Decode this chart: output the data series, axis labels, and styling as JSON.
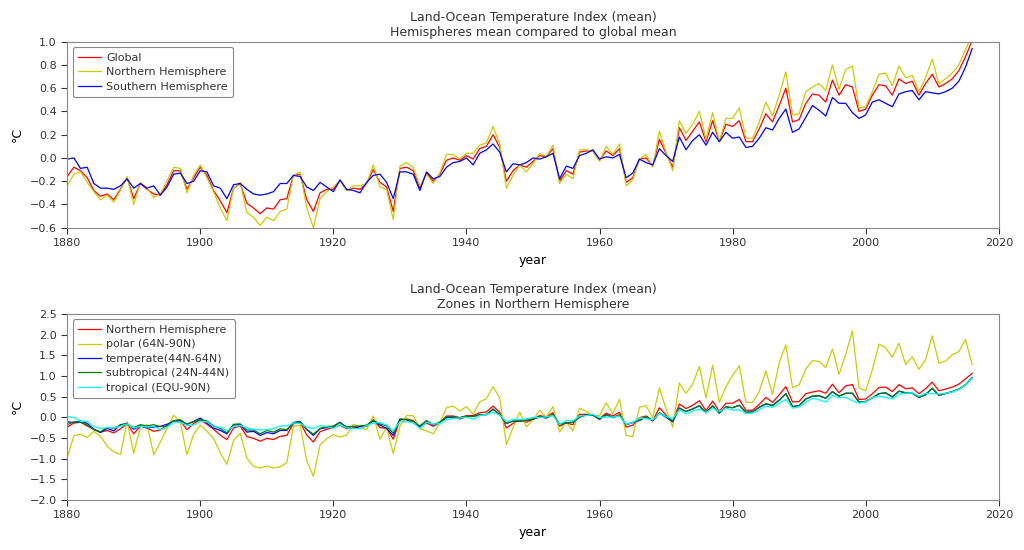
{
  "title1": "Land-Ocean Temperature Index (mean)",
  "subtitle1": "Hemispheres mean compared to global mean",
  "title2": "Land-Ocean Temperature Index (mean)",
  "subtitle2": "Zones in Northern Hemisphere",
  "xlabel": "year",
  "ylabel": "°C",
  "years": [
    1880,
    1881,
    1882,
    1883,
    1884,
    1885,
    1886,
    1887,
    1888,
    1889,
    1890,
    1891,
    1892,
    1893,
    1894,
    1895,
    1896,
    1897,
    1898,
    1899,
    1900,
    1901,
    1902,
    1903,
    1904,
    1905,
    1906,
    1907,
    1908,
    1909,
    1910,
    1911,
    1912,
    1913,
    1914,
    1915,
    1916,
    1917,
    1918,
    1919,
    1920,
    1921,
    1922,
    1923,
    1924,
    1925,
    1926,
    1927,
    1928,
    1929,
    1930,
    1931,
    1932,
    1933,
    1934,
    1935,
    1936,
    1937,
    1938,
    1939,
    1940,
    1941,
    1942,
    1943,
    1944,
    1945,
    1946,
    1947,
    1948,
    1949,
    1950,
    1951,
    1952,
    1953,
    1954,
    1955,
    1956,
    1957,
    1958,
    1959,
    1960,
    1961,
    1962,
    1963,
    1964,
    1965,
    1966,
    1967,
    1968,
    1969,
    1970,
    1971,
    1972,
    1973,
    1974,
    1975,
    1976,
    1977,
    1978,
    1979,
    1980,
    1981,
    1982,
    1983,
    1984,
    1985,
    1986,
    1987,
    1988,
    1989,
    1990,
    1991,
    1992,
    1993,
    1994,
    1995,
    1996,
    1997,
    1998,
    1999,
    2000,
    2001,
    2002,
    2003,
    2004,
    2005,
    2006,
    2007,
    2008,
    2009,
    2010,
    2011,
    2012,
    2013,
    2014,
    2015,
    2016
  ],
  "global": [
    -0.16,
    -0.08,
    -0.11,
    -0.17,
    -0.28,
    -0.33,
    -0.31,
    -0.36,
    -0.27,
    -0.17,
    -0.35,
    -0.22,
    -0.27,
    -0.31,
    -0.32,
    -0.23,
    -0.11,
    -0.11,
    -0.27,
    -0.17,
    -0.08,
    -0.15,
    -0.28,
    -0.37,
    -0.47,
    -0.26,
    -0.22,
    -0.39,
    -0.43,
    -0.48,
    -0.43,
    -0.44,
    -0.36,
    -0.35,
    -0.15,
    -0.14,
    -0.36,
    -0.46,
    -0.3,
    -0.27,
    -0.27,
    -0.19,
    -0.28,
    -0.26,
    -0.27,
    -0.22,
    -0.1,
    -0.21,
    -0.25,
    -0.46,
    -0.09,
    -0.08,
    -0.11,
    -0.26,
    -0.13,
    -0.2,
    -0.14,
    -0.02,
    -0.0,
    -0.02,
    0.02,
    -0.01,
    0.08,
    0.1,
    0.2,
    0.09,
    -0.2,
    -0.11,
    -0.06,
    -0.08,
    -0.03,
    0.02,
    0.01,
    0.08,
    -0.2,
    -0.11,
    -0.14,
    0.05,
    0.06,
    0.06,
    -0.02,
    0.06,
    0.02,
    0.08,
    -0.21,
    -0.17,
    -0.01,
    0.0,
    -0.07,
    0.16,
    0.04,
    -0.08,
    0.26,
    0.15,
    0.23,
    0.31,
    0.14,
    0.32,
    0.14,
    0.29,
    0.27,
    0.32,
    0.14,
    0.14,
    0.25,
    0.38,
    0.31,
    0.45,
    0.6,
    0.31,
    0.33,
    0.47,
    0.55,
    0.54,
    0.48,
    0.67,
    0.54,
    0.63,
    0.61,
    0.4,
    0.42,
    0.54,
    0.63,
    0.62,
    0.54,
    0.68,
    0.64,
    0.66,
    0.54,
    0.64,
    0.72,
    0.61,
    0.64,
    0.68,
    0.75,
    0.87,
    1.01
  ],
  "north": [
    -0.24,
    -0.14,
    -0.12,
    -0.21,
    -0.29,
    -0.36,
    -0.32,
    -0.38,
    -0.28,
    -0.16,
    -0.4,
    -0.21,
    -0.26,
    -0.34,
    -0.31,
    -0.2,
    -0.08,
    -0.09,
    -0.3,
    -0.15,
    -0.06,
    -0.17,
    -0.29,
    -0.43,
    -0.54,
    -0.26,
    -0.21,
    -0.47,
    -0.51,
    -0.58,
    -0.51,
    -0.54,
    -0.46,
    -0.44,
    -0.15,
    -0.12,
    -0.43,
    -0.6,
    -0.35,
    -0.29,
    -0.25,
    -0.19,
    -0.28,
    -0.24,
    -0.24,
    -0.22,
    -0.06,
    -0.25,
    -0.27,
    -0.53,
    -0.07,
    -0.04,
    -0.08,
    -0.24,
    -0.14,
    -0.22,
    -0.13,
    0.03,
    0.03,
    -0.01,
    0.04,
    0.04,
    0.11,
    0.13,
    0.27,
    0.12,
    -0.26,
    -0.15,
    -0.06,
    -0.12,
    -0.05,
    0.04,
    0.01,
    0.11,
    -0.22,
    -0.14,
    -0.18,
    0.07,
    0.07,
    0.06,
    -0.03,
    0.1,
    0.03,
    0.12,
    -0.24,
    -0.19,
    -0.01,
    0.03,
    -0.08,
    0.23,
    0.05,
    -0.11,
    0.32,
    0.21,
    0.29,
    0.4,
    0.16,
    0.39,
    0.14,
    0.34,
    0.34,
    0.43,
    0.17,
    0.17,
    0.31,
    0.48,
    0.36,
    0.54,
    0.74,
    0.37,
    0.38,
    0.57,
    0.61,
    0.64,
    0.58,
    0.8,
    0.59,
    0.76,
    0.79,
    0.43,
    0.44,
    0.57,
    0.72,
    0.73,
    0.62,
    0.79,
    0.69,
    0.71,
    0.57,
    0.69,
    0.85,
    0.64,
    0.68,
    0.73,
    0.8,
    0.93,
    1.06
  ],
  "south": [
    -0.01,
    0.0,
    -0.09,
    -0.08,
    -0.22,
    -0.26,
    -0.26,
    -0.27,
    -0.24,
    -0.18,
    -0.26,
    -0.22,
    -0.26,
    -0.24,
    -0.32,
    -0.25,
    -0.14,
    -0.13,
    -0.22,
    -0.2,
    -0.11,
    -0.12,
    -0.24,
    -0.26,
    -0.35,
    -0.23,
    -0.22,
    -0.27,
    -0.31,
    -0.32,
    -0.31,
    -0.29,
    -0.22,
    -0.22,
    -0.15,
    -0.16,
    -0.25,
    -0.28,
    -0.21,
    -0.25,
    -0.29,
    -0.19,
    -0.27,
    -0.28,
    -0.3,
    -0.21,
    -0.15,
    -0.14,
    -0.21,
    -0.35,
    -0.12,
    -0.12,
    -0.14,
    -0.28,
    -0.12,
    -0.18,
    -0.16,
    -0.08,
    -0.04,
    -0.03,
    -0.0,
    -0.06,
    0.04,
    0.07,
    0.12,
    0.05,
    -0.12,
    -0.05,
    -0.06,
    -0.04,
    0.0,
    -0.01,
    0.01,
    0.04,
    -0.18,
    -0.07,
    -0.09,
    0.02,
    0.04,
    0.07,
    -0.01,
    0.01,
    0.0,
    0.03,
    -0.17,
    -0.13,
    -0.01,
    -0.04,
    -0.06,
    0.08,
    0.02,
    -0.03,
    0.18,
    0.07,
    0.15,
    0.2,
    0.11,
    0.22,
    0.14,
    0.22,
    0.17,
    0.18,
    0.09,
    0.1,
    0.17,
    0.26,
    0.24,
    0.34,
    0.42,
    0.22,
    0.25,
    0.35,
    0.45,
    0.41,
    0.36,
    0.52,
    0.47,
    0.47,
    0.39,
    0.34,
    0.37,
    0.48,
    0.5,
    0.47,
    0.44,
    0.55,
    0.57,
    0.58,
    0.5,
    0.57,
    0.56,
    0.55,
    0.57,
    0.6,
    0.66,
    0.78,
    0.94
  ],
  "nh_polar": [
    -0.97,
    -0.45,
    -0.41,
    -0.49,
    -0.34,
    -0.46,
    -0.7,
    -0.84,
    -0.9,
    -0.1,
    -0.87,
    -0.24,
    -0.18,
    -0.91,
    -0.6,
    -0.27,
    0.05,
    -0.12,
    -0.91,
    -0.41,
    -0.19,
    -0.34,
    -0.51,
    -0.86,
    -1.14,
    -0.56,
    -0.39,
    -0.99,
    -1.19,
    -1.23,
    -1.18,
    -1.23,
    -1.2,
    -1.1,
    -0.22,
    -0.19,
    -1.05,
    -1.43,
    -0.67,
    -0.52,
    -0.42,
    -0.48,
    -0.43,
    -0.17,
    -0.24,
    -0.3,
    0.03,
    -0.53,
    -0.24,
    -0.88,
    -0.22,
    0.04,
    0.04,
    -0.28,
    -0.33,
    -0.4,
    -0.14,
    0.23,
    0.27,
    0.15,
    0.26,
    0.07,
    0.37,
    0.45,
    0.74,
    0.47,
    -0.66,
    -0.25,
    0.12,
    -0.23,
    -0.07,
    0.17,
    0.0,
    0.26,
    -0.36,
    -0.11,
    -0.33,
    0.22,
    0.14,
    0.04,
    0.04,
    0.35,
    0.09,
    0.43,
    -0.44,
    -0.47,
    0.24,
    0.28,
    -0.01,
    0.71,
    0.2,
    -0.24,
    0.83,
    0.58,
    0.8,
    1.23,
    0.46,
    1.26,
    0.36,
    0.74,
    1.01,
    1.25,
    0.36,
    0.36,
    0.62,
    1.12,
    0.55,
    1.32,
    1.75,
    0.72,
    0.78,
    1.17,
    1.37,
    1.35,
    1.2,
    1.65,
    1.04,
    1.52,
    2.09,
    0.71,
    0.64,
    1.15,
    1.77,
    1.68,
    1.45,
    1.79,
    1.28,
    1.46,
    1.16,
    1.39,
    1.97,
    1.31,
    1.36,
    1.51,
    1.59,
    1.88,
    1.27
  ],
  "nh_temperate": [
    -0.11,
    -0.13,
    -0.09,
    -0.15,
    -0.29,
    -0.37,
    -0.27,
    -0.33,
    -0.18,
    -0.15,
    -0.29,
    -0.21,
    -0.26,
    -0.24,
    -0.22,
    -0.17,
    -0.1,
    -0.08,
    -0.17,
    -0.1,
    -0.02,
    -0.14,
    -0.26,
    -0.32,
    -0.4,
    -0.19,
    -0.18,
    -0.36,
    -0.34,
    -0.44,
    -0.37,
    -0.4,
    -0.32,
    -0.32,
    -0.13,
    -0.1,
    -0.3,
    -0.44,
    -0.28,
    -0.25,
    -0.22,
    -0.12,
    -0.26,
    -0.27,
    -0.22,
    -0.2,
    -0.09,
    -0.19,
    -0.27,
    -0.44,
    -0.05,
    -0.06,
    -0.13,
    -0.24,
    -0.1,
    -0.19,
    -0.13,
    -0.01,
    0.0,
    -0.04,
    0.01,
    0.02,
    0.06,
    0.06,
    0.2,
    0.06,
    -0.15,
    -0.1,
    -0.1,
    -0.07,
    -0.05,
    0.01,
    -0.02,
    0.06,
    -0.17,
    -0.14,
    -0.12,
    0.0,
    0.06,
    0.05,
    -0.05,
    0.06,
    -0.01,
    0.05,
    -0.18,
    -0.13,
    -0.08,
    0.01,
    -0.09,
    0.1,
    0.0,
    -0.11,
    0.22,
    0.14,
    0.2,
    0.28,
    0.11,
    0.27,
    0.1,
    0.25,
    0.23,
    0.29,
    0.12,
    0.13,
    0.24,
    0.32,
    0.29,
    0.41,
    0.57,
    0.26,
    0.28,
    0.44,
    0.51,
    0.52,
    0.46,
    0.62,
    0.51,
    0.58,
    0.58,
    0.37,
    0.38,
    0.47,
    0.57,
    0.59,
    0.49,
    0.63,
    0.59,
    0.58,
    0.48,
    0.54,
    0.7,
    0.53,
    0.57,
    0.62,
    0.68,
    0.78,
    0.96
  ],
  "nh_subtropical": [
    -0.18,
    -0.11,
    -0.12,
    -0.19,
    -0.3,
    -0.35,
    -0.25,
    -0.27,
    -0.19,
    -0.17,
    -0.25,
    -0.18,
    -0.21,
    -0.18,
    -0.23,
    -0.21,
    -0.08,
    -0.06,
    -0.17,
    -0.11,
    -0.06,
    -0.09,
    -0.21,
    -0.27,
    -0.38,
    -0.17,
    -0.16,
    -0.31,
    -0.31,
    -0.4,
    -0.32,
    -0.36,
    -0.28,
    -0.3,
    -0.13,
    -0.11,
    -0.29,
    -0.41,
    -0.27,
    -0.22,
    -0.22,
    -0.13,
    -0.23,
    -0.22,
    -0.21,
    -0.19,
    -0.07,
    -0.16,
    -0.21,
    -0.39,
    -0.04,
    -0.06,
    -0.1,
    -0.21,
    -0.08,
    -0.18,
    -0.12,
    0.01,
    0.01,
    -0.01,
    0.02,
    0.02,
    0.06,
    0.07,
    0.19,
    0.07,
    -0.15,
    -0.09,
    -0.09,
    -0.07,
    -0.04,
    0.01,
    -0.01,
    0.07,
    -0.18,
    -0.13,
    -0.12,
    0.01,
    0.05,
    0.06,
    -0.05,
    0.06,
    -0.01,
    0.06,
    -0.18,
    -0.12,
    -0.07,
    0.02,
    -0.08,
    0.11,
    0.02,
    -0.09,
    0.22,
    0.14,
    0.2,
    0.28,
    0.11,
    0.28,
    0.1,
    0.25,
    0.23,
    0.29,
    0.12,
    0.13,
    0.24,
    0.33,
    0.28,
    0.41,
    0.57,
    0.26,
    0.28,
    0.44,
    0.51,
    0.52,
    0.46,
    0.62,
    0.51,
    0.58,
    0.58,
    0.37,
    0.38,
    0.47,
    0.57,
    0.59,
    0.49,
    0.63,
    0.59,
    0.58,
    0.48,
    0.55,
    0.7,
    0.53,
    0.58,
    0.62,
    0.68,
    0.79,
    0.96
  ],
  "nh_tropical": [
    0.02,
    -0.01,
    -0.1,
    -0.1,
    -0.23,
    -0.27,
    -0.25,
    -0.26,
    -0.22,
    -0.16,
    -0.26,
    -0.22,
    -0.24,
    -0.22,
    -0.31,
    -0.24,
    -0.12,
    -0.12,
    -0.2,
    -0.19,
    -0.1,
    -0.11,
    -0.23,
    -0.24,
    -0.33,
    -0.22,
    -0.2,
    -0.26,
    -0.29,
    -0.31,
    -0.3,
    -0.27,
    -0.21,
    -0.21,
    -0.14,
    -0.15,
    -0.24,
    -0.27,
    -0.2,
    -0.23,
    -0.27,
    -0.18,
    -0.26,
    -0.27,
    -0.28,
    -0.2,
    -0.14,
    -0.13,
    -0.19,
    -0.33,
    -0.11,
    -0.11,
    -0.13,
    -0.27,
    -0.12,
    -0.17,
    -0.15,
    -0.06,
    -0.03,
    -0.02,
    0.0,
    -0.05,
    0.04,
    0.07,
    0.12,
    0.05,
    -0.11,
    -0.05,
    -0.06,
    -0.04,
    0.0,
    -0.01,
    0.01,
    0.04,
    -0.18,
    -0.07,
    -0.09,
    0.03,
    0.04,
    0.07,
    -0.01,
    0.01,
    0.0,
    0.03,
    -0.17,
    -0.13,
    -0.01,
    -0.04,
    -0.06,
    0.09,
    0.02,
    -0.03,
    0.18,
    0.08,
    0.15,
    0.2,
    0.11,
    0.22,
    0.14,
    0.22,
    0.17,
    0.18,
    0.09,
    0.1,
    0.18,
    0.27,
    0.24,
    0.34,
    0.43,
    0.22,
    0.25,
    0.36,
    0.46,
    0.42,
    0.37,
    0.53,
    0.47,
    0.48,
    0.4,
    0.34,
    0.37,
    0.48,
    0.51,
    0.48,
    0.44,
    0.56,
    0.58,
    0.59,
    0.51,
    0.58,
    0.57,
    0.56,
    0.58,
    0.61,
    0.67,
    0.78,
    0.95
  ],
  "colors_top": [
    "red",
    "#cccc00",
    "blue"
  ],
  "colors_bottom": [
    "red",
    "#cccc00",
    "blue",
    "green",
    "cyan"
  ],
  "ylim1": [
    -0.6,
    1.0
  ],
  "ylim2": [
    -2.0,
    2.5
  ],
  "yticks1": [
    -0.6,
    -0.4,
    -0.2,
    0.0,
    0.2,
    0.4,
    0.6,
    0.8,
    1.0
  ],
  "yticks2": [
    -2.0,
    -1.5,
    -1.0,
    -0.5,
    0.0,
    0.5,
    1.0,
    1.5,
    2.0,
    2.5
  ],
  "xlim": [
    1880,
    2020
  ],
  "xticks": [
    1880,
    1900,
    1920,
    1940,
    1960,
    1980,
    2000,
    2020
  ],
  "legend1": [
    "Global",
    "Northern Hemisphere",
    "Southern Hemisphere"
  ],
  "legend2": [
    "Northern Hemisphere",
    "polar (64N-90N)",
    "temperate(44N-64N)",
    "subtropical (24N-44N)",
    "tropical (EQU-90N)"
  ],
  "bg_color": "#ffffff",
  "spine_color": "#888888",
  "tick_label_size": 8,
  "axis_label_size": 9,
  "title_size": 9,
  "legend_fontsize": 8,
  "linewidth": 0.9
}
